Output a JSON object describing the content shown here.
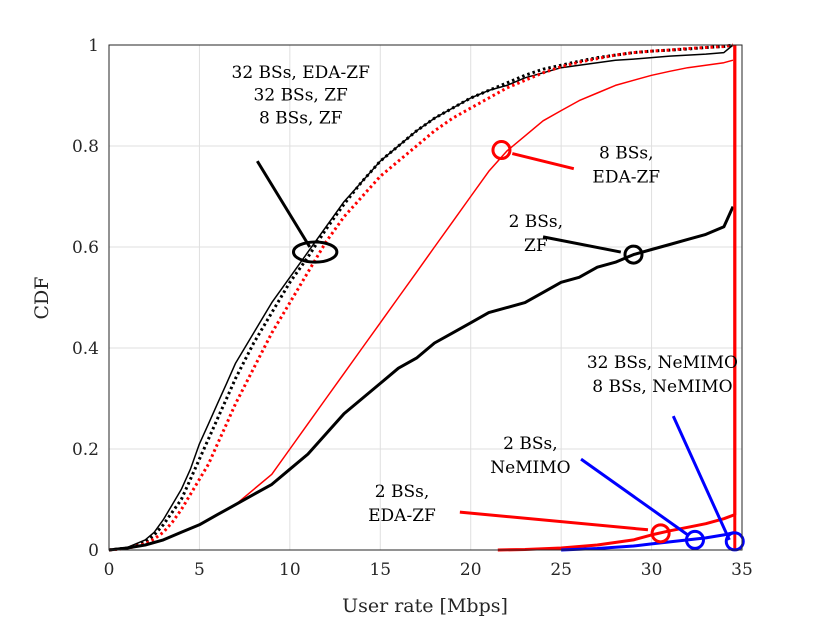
{
  "chart_data": {
    "type": "line",
    "title": "",
    "xlabel": "User rate [Mbps]",
    "ylabel": "CDF",
    "xlim": [
      0,
      35
    ],
    "ylim": [
      0,
      1
    ],
    "xticks": [
      "0",
      "5",
      "10",
      "15",
      "20",
      "25",
      "30",
      "35"
    ],
    "yticks": [
      "0",
      "0.2",
      "0.4",
      "0.6",
      "0.8",
      "1"
    ],
    "xtick_values": [
      0,
      5,
      10,
      15,
      20,
      25,
      30,
      35
    ],
    "ytick_values": [
      0,
      0.2,
      0.4,
      0.6,
      0.8,
      1
    ],
    "grid": true,
    "series": [
      {
        "name": "32 BSs, EDA-ZF",
        "color": "#000000",
        "style": "solid",
        "weight": "thin",
        "x": [
          0,
          1,
          2,
          2.5,
          3,
          3.5,
          4,
          4.5,
          5,
          5.5,
          6,
          6.5,
          7,
          8,
          9,
          10,
          11,
          12,
          13,
          14,
          15,
          16,
          17,
          18,
          19,
          20,
          21,
          22,
          23,
          24,
          25,
          26,
          27,
          28,
          29,
          30,
          31,
          32,
          33,
          34,
          34.5
        ],
        "y": [
          0,
          0.005,
          0.02,
          0.035,
          0.06,
          0.09,
          0.12,
          0.16,
          0.21,
          0.25,
          0.29,
          0.33,
          0.37,
          0.43,
          0.49,
          0.54,
          0.59,
          0.64,
          0.69,
          0.73,
          0.77,
          0.8,
          0.83,
          0.855,
          0.875,
          0.895,
          0.91,
          0.92,
          0.935,
          0.945,
          0.955,
          0.96,
          0.965,
          0.97,
          0.972,
          0.975,
          0.978,
          0.98,
          0.982,
          0.985,
          1.0
        ]
      },
      {
        "name": "32 BSs, ZF",
        "color": "#000000",
        "style": "dotted",
        "weight": "thick",
        "x": [
          0,
          1,
          2,
          2.5,
          3,
          3.5,
          4,
          4.5,
          5,
          5.5,
          6,
          6.5,
          7,
          8,
          9,
          10,
          11,
          12,
          13,
          14,
          15,
          16,
          17,
          18,
          19,
          20,
          21,
          22,
          23,
          24,
          25,
          26,
          27,
          28,
          29,
          30,
          31,
          32,
          33,
          34,
          34.5
        ],
        "y": [
          0,
          0.004,
          0.015,
          0.03,
          0.05,
          0.075,
          0.1,
          0.14,
          0.18,
          0.22,
          0.26,
          0.3,
          0.34,
          0.41,
          0.47,
          0.53,
          0.58,
          0.635,
          0.685,
          0.73,
          0.77,
          0.8,
          0.83,
          0.855,
          0.875,
          0.895,
          0.91,
          0.925,
          0.94,
          0.952,
          0.96,
          0.968,
          0.975,
          0.98,
          0.985,
          0.988,
          0.99,
          0.992,
          0.995,
          0.997,
          1.0
        ]
      },
      {
        "name": "8 BSs, ZF",
        "color": "#ff0000",
        "style": "dotted",
        "weight": "thick",
        "x": [
          0,
          1,
          2,
          2.5,
          3,
          3.5,
          4,
          4.5,
          5,
          5.5,
          6,
          6.5,
          7,
          8,
          9,
          10,
          11,
          12,
          13,
          14,
          15,
          16,
          17,
          18,
          19,
          20,
          21,
          22,
          23,
          24,
          25,
          26,
          27,
          28,
          29,
          30,
          31,
          32,
          33,
          34,
          34.5
        ],
        "y": [
          0,
          0.003,
          0.012,
          0.022,
          0.035,
          0.055,
          0.08,
          0.11,
          0.14,
          0.17,
          0.21,
          0.25,
          0.29,
          0.36,
          0.43,
          0.49,
          0.55,
          0.61,
          0.66,
          0.7,
          0.74,
          0.77,
          0.8,
          0.83,
          0.855,
          0.875,
          0.895,
          0.915,
          0.93,
          0.945,
          0.957,
          0.966,
          0.973,
          0.98,
          0.985,
          0.988,
          0.99,
          0.993,
          0.995,
          0.997,
          1.0
        ]
      },
      {
        "name": "8 BSs, EDA-ZF",
        "color": "#ff0000",
        "style": "solid",
        "weight": "thin",
        "x": [
          0,
          1,
          2,
          3,
          4,
          5,
          6,
          7,
          8,
          9,
          10,
          11,
          12,
          13,
          14,
          15,
          16,
          17,
          18,
          19,
          20,
          21,
          22,
          23,
          24,
          25,
          26,
          27,
          28,
          29,
          30,
          31,
          32,
          33,
          34,
          34.5
        ],
        "y": [
          0,
          0.003,
          0.01,
          0.02,
          0.035,
          0.05,
          0.07,
          0.09,
          0.12,
          0.15,
          0.2,
          0.25,
          0.3,
          0.35,
          0.4,
          0.45,
          0.5,
          0.55,
          0.6,
          0.65,
          0.7,
          0.75,
          0.79,
          0.82,
          0.85,
          0.87,
          0.89,
          0.905,
          0.92,
          0.93,
          0.94,
          0.948,
          0.955,
          0.96,
          0.965,
          0.97
        ]
      },
      {
        "name": "2 BSs, ZF",
        "color": "#000000",
        "style": "solid",
        "weight": "thick",
        "x": [
          0,
          1,
          2,
          3,
          4,
          5,
          6,
          7,
          8,
          9,
          10,
          11,
          12,
          13,
          14,
          15,
          16,
          17,
          18,
          19,
          20,
          21,
          22,
          23,
          24,
          25,
          26,
          27,
          28,
          29,
          30,
          31,
          32,
          33,
          34,
          34.5
        ],
        "y": [
          0,
          0.004,
          0.01,
          0.02,
          0.035,
          0.05,
          0.07,
          0.09,
          0.11,
          0.13,
          0.16,
          0.19,
          0.23,
          0.27,
          0.3,
          0.33,
          0.36,
          0.38,
          0.41,
          0.43,
          0.45,
          0.47,
          0.48,
          0.49,
          0.51,
          0.53,
          0.54,
          0.56,
          0.57,
          0.585,
          0.595,
          0.605,
          0.615,
          0.625,
          0.64,
          0.68
        ]
      },
      {
        "name": "2 BSs, EDA-ZF",
        "color": "#ff0000",
        "style": "solid",
        "weight": "thick",
        "x": [
          21.5,
          23,
          25,
          27,
          29,
          30,
          31,
          32,
          33,
          34,
          34.6,
          34.6,
          34.6
        ],
        "y": [
          0,
          0.001,
          0.004,
          0.01,
          0.02,
          0.03,
          0.038,
          0.045,
          0.052,
          0.062,
          0.07,
          0.5,
          1.0
        ]
      },
      {
        "name": "2 BSs, NeMIMO",
        "color": "#0000ff",
        "style": "solid",
        "weight": "thick",
        "x": [
          25,
          27,
          29,
          30,
          31,
          32,
          33,
          34,
          34.6
        ],
        "y": [
          0,
          0.003,
          0.008,
          0.012,
          0.016,
          0.02,
          0.024,
          0.03,
          0.035
        ]
      },
      {
        "name": "32 BSs, NeMIMO / 8 BSs, NeMIMO",
        "color": "#ff0000",
        "style": "solid",
        "weight": "thick",
        "x": [
          34.6,
          34.6
        ],
        "y": [
          0,
          1.0
        ]
      }
    ],
    "annotations": [
      {
        "name": "32-bss-edazf-label",
        "lines": [
          "32 BSs, EDA-ZF"
        ],
        "ax": 10.6,
        "ay": 0.935,
        "anchor": "middle",
        "color": "#000000"
      },
      {
        "name": "32-bss-zf-label",
        "lines": [
          "32 BSs, ZF"
        ],
        "ax": 10.6,
        "ay": 0.89,
        "anchor": "middle",
        "color": "#000000"
      },
      {
        "name": "8-bss-zf-label",
        "lines": [
          "8 BSs, ZF"
        ],
        "ax": 10.6,
        "ay": 0.845,
        "anchor": "middle",
        "color": "#000000"
      },
      {
        "name": "8-bss-edazf-label",
        "lines": [
          "8 BSs,",
          "EDA-ZF"
        ],
        "ax": 28.6,
        "ay": 0.775,
        "anchor": "middle",
        "color": "#000000"
      },
      {
        "name": "2-bss-zf-label",
        "lines": [
          "2 BSs,",
          "ZF"
        ],
        "ax": 23.6,
        "ay": 0.64,
        "anchor": "middle",
        "color": "#000000"
      },
      {
        "name": "32-8-bss-nemimo-label",
        "lines": [
          "32 BSs, NeMIMO",
          "8 BSs, NeMIMO"
        ],
        "ax": 30.6,
        "ay": 0.36,
        "anchor": "middle",
        "color": "#000000"
      },
      {
        "name": "2-bss-nemimo-label",
        "lines": [
          "2 BSs,",
          "NeMIMO"
        ],
        "ax": 23.3,
        "ay": 0.2,
        "anchor": "middle",
        "color": "#000000"
      },
      {
        "name": "2-bss-edazf-label",
        "lines": [
          "2 BSs,",
          "EDA-ZF"
        ],
        "ax": 16.2,
        "ay": 0.105,
        "anchor": "middle",
        "color": "#000000"
      }
    ],
    "callouts": [
      {
        "name": "callout-32-8-zf",
        "color": "#000000",
        "line": [
          [
            8.2,
            0.77
          ],
          [
            11.1,
            0.6
          ]
        ],
        "ellipse": [
          11.4,
          0.59,
          1.2,
          0.02
        ]
      },
      {
        "name": "callout-8-edazf",
        "color": "#ff0000",
        "line": [
          [
            25.7,
            0.755
          ],
          [
            22.3,
            0.785
          ]
        ],
        "circle": [
          21.7,
          0.792,
          0.8
        ]
      },
      {
        "name": "callout-2-zf",
        "color": "#000000",
        "line": [
          [
            24.0,
            0.62
          ],
          [
            28.3,
            0.59
          ]
        ],
        "circle": [
          29.0,
          0.585,
          0.8
        ]
      },
      {
        "name": "callout-32-8-nemimo",
        "color": "#0000ff",
        "line": [
          [
            31.2,
            0.265
          ],
          [
            34.3,
            0.02
          ]
        ],
        "circle": [
          34.6,
          0.017,
          0.8
        ]
      },
      {
        "name": "callout-2-nemimo",
        "color": "#0000ff",
        "line": [
          [
            26.1,
            0.18
          ],
          [
            32.0,
            0.03
          ]
        ],
        "circle": [
          32.4,
          0.02,
          0.8
        ]
      },
      {
        "name": "callout-2-edazf",
        "color": "#ff0000",
        "line": [
          [
            19.4,
            0.075
          ],
          [
            29.8,
            0.04
          ]
        ],
        "circle": [
          30.5,
          0.033,
          0.8
        ]
      }
    ]
  }
}
